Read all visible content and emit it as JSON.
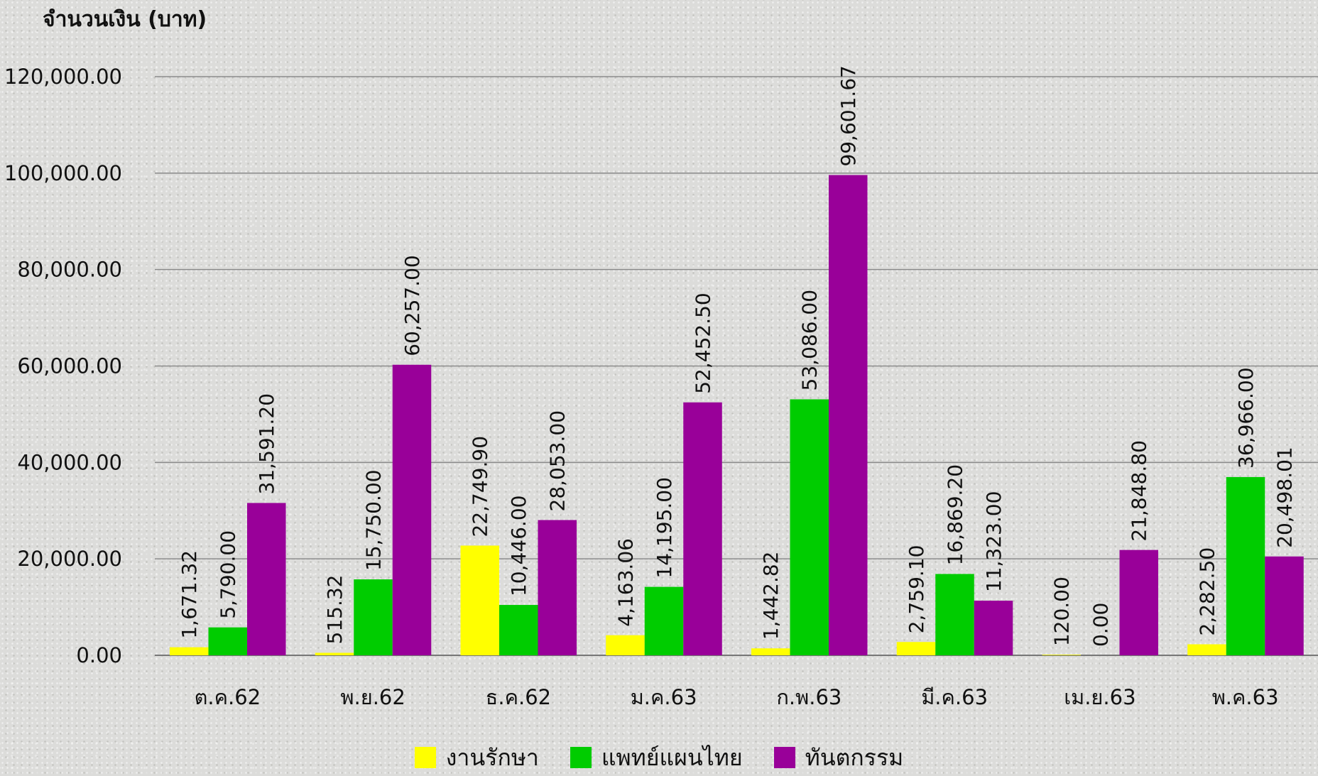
{
  "chart_data": {
    "type": "bar",
    "ylabel": "จำนวนเงิน (บาท)",
    "xlabel": "",
    "ylim": [
      0,
      120000
    ],
    "yticks": [
      0,
      20000,
      40000,
      60000,
      80000,
      100000,
      120000
    ],
    "ytick_labels": [
      "0.00",
      "20,000.00",
      "40,000.00",
      "60,000.00",
      "80,000.00",
      "100,000.00",
      "120,000.00"
    ],
    "grid": true,
    "legend_position": "bottom",
    "categories": [
      "ต.ค.62",
      "พ.ย.62",
      "ธ.ค.62",
      "ม.ค.63",
      "ก.พ.63",
      "มี.ค.63",
      "เม.ย.63",
      "พ.ค.63"
    ],
    "series": [
      {
        "name": "งานรักษา",
        "color": "#ffff00",
        "values": [
          1671.32,
          515.32,
          22749.9,
          4163.06,
          1442.82,
          2759.1,
          120.0,
          2282.5
        ],
        "labels": [
          "1,671.32",
          "515.32",
          "22,749.90",
          "4,163.06",
          "1,442.82",
          "2,759.10",
          "120.00",
          "2,282.50"
        ]
      },
      {
        "name": "แพทย์แผนไทย",
        "color": "#00cc00",
        "values": [
          5790.0,
          15750.0,
          10446.0,
          14195.0,
          53086.0,
          16869.2,
          0.0,
          36966.0
        ],
        "labels": [
          "5,790.00",
          "15,750.00",
          "10,446.00",
          "14,195.00",
          "53,086.00",
          "16,869.20",
          "0.00",
          "36,966.00"
        ]
      },
      {
        "name": "ทันตกรรม",
        "color": "#990099",
        "values": [
          31591.2,
          60257.0,
          28053.0,
          52452.5,
          99601.67,
          11323.0,
          21848.8,
          20498.01
        ],
        "labels": [
          "31,591.20",
          "60,257.00",
          "28,053.00",
          "52,452.50",
          "99,601.67",
          "11,323.00",
          "21,848.80",
          "20,498.01"
        ]
      }
    ]
  }
}
